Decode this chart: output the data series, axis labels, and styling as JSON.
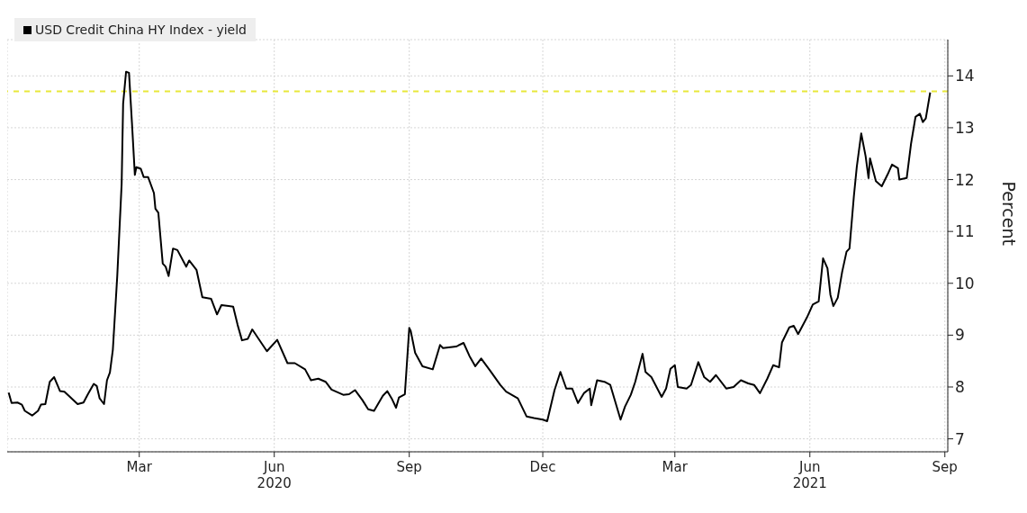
{
  "chart_data": {
    "type": "line",
    "ylabel": "Percent",
    "legend": "top left",
    "grid": true,
    "line_style": "solid",
    "marker": "none",
    "xlim": [
      "2019-12-02",
      "2021-09-03"
    ],
    "xticks": [
      {
        "value": "2020-03-01",
        "label": "Mar"
      },
      {
        "value": "2020-06-01",
        "label": "Jun\n2020"
      },
      {
        "value": "2020-09-01",
        "label": "Sep"
      },
      {
        "value": "2020-12-01",
        "label": "Dec"
      },
      {
        "value": "2021-03-01",
        "label": "Mar"
      },
      {
        "value": "2021-06-01",
        "label": "Jun\n2021"
      },
      {
        "value": "2021-09-01",
        "label": "Sep"
      }
    ],
    "ylim": [
      6.75,
      14.7
    ],
    "yticks": [
      7,
      8,
      9,
      10,
      11,
      12,
      13,
      14
    ],
    "ref_lines": [
      {
        "axis": "y",
        "value": 13.7,
        "color": "#e8e83a",
        "line_style": "dashed"
      }
    ],
    "series": [
      {
        "name": "USD Credit China HY Index - yield",
        "color": "#000000",
        "x": [
          "2019-12-03",
          "2019-12-05",
          "2019-12-09",
          "2019-12-12",
          "2019-12-14",
          "2019-12-19",
          "2019-12-23",
          "2019-12-25",
          "2019-12-28",
          "2019-12-31",
          "2020-01-03",
          "2020-01-07",
          "2020-01-10",
          "2020-01-19",
          "2020-01-23",
          "2020-01-26",
          "2020-01-30",
          "2020-02-01",
          "2020-02-03",
          "2020-02-06",
          "2020-02-08",
          "2020-02-10",
          "2020-02-12",
          "2020-02-15",
          "2020-02-18",
          "2020-02-19",
          "2020-02-21",
          "2020-02-23",
          "2020-02-25",
          "2020-02-27",
          "2020-02-28",
          "2020-03-02",
          "2020-03-04",
          "2020-03-07",
          "2020-03-11",
          "2020-03-12",
          "2020-03-14",
          "2020-03-17",
          "2020-03-19",
          "2020-03-21",
          "2020-03-24",
          "2020-03-27",
          "2020-04-02",
          "2020-04-04",
          "2020-04-09",
          "2020-04-13",
          "2020-04-19",
          "2020-04-23",
          "2020-04-26",
          "2020-05-04",
          "2020-05-07",
          "2020-05-10",
          "2020-05-14",
          "2020-05-17",
          "2020-05-27",
          "2020-06-03",
          "2020-06-10",
          "2020-06-15",
          "2020-06-22",
          "2020-06-26",
          "2020-07-01",
          "2020-07-06",
          "2020-07-10",
          "2020-07-18",
          "2020-07-22",
          "2020-07-26",
          "2020-07-31",
          "2020-08-04",
          "2020-08-08",
          "2020-08-14",
          "2020-08-17",
          "2020-08-20",
          "2020-08-23",
          "2020-08-25",
          "2020-08-29",
          "2020-09-01",
          "2020-09-02",
          "2020-09-05",
          "2020-09-10",
          "2020-09-17",
          "2020-09-22",
          "2020-09-24",
          "2020-10-03",
          "2020-10-08",
          "2020-10-12",
          "2020-10-16",
          "2020-10-20",
          "2020-10-26",
          "2020-11-02",
          "2020-11-06",
          "2020-11-14",
          "2020-11-20",
          "2020-11-25",
          "2020-12-01",
          "2020-12-04",
          "2020-12-09",
          "2020-12-13",
          "2020-12-17",
          "2020-12-21",
          "2020-12-25",
          "2020-12-29",
          "2021-01-02",
          "2021-01-03",
          "2021-01-07",
          "2021-01-12",
          "2021-01-16",
          "2021-01-23",
          "2021-01-26",
          "2021-01-30",
          "2021-02-02",
          "2021-02-07",
          "2021-02-09",
          "2021-02-13",
          "2021-02-20",
          "2021-02-23",
          "2021-02-26",
          "2021-03-01",
          "2021-03-03",
          "2021-03-09",
          "2021-03-12",
          "2021-03-17",
          "2021-03-21",
          "2021-03-25",
          "2021-03-29",
          "2021-04-05",
          "2021-04-10",
          "2021-04-15",
          "2021-04-20",
          "2021-04-24",
          "2021-04-28",
          "2021-05-03",
          "2021-05-07",
          "2021-05-11",
          "2021-05-13",
          "2021-05-18",
          "2021-05-21",
          "2021-05-24",
          "2021-05-30",
          "2021-06-03",
          "2021-06-07",
          "2021-06-10",
          "2021-06-13",
          "2021-06-15",
          "2021-06-17",
          "2021-06-20",
          "2021-06-23",
          "2021-06-26",
          "2021-06-28",
          "2021-07-01",
          "2021-07-03",
          "2021-07-06",
          "2021-07-09",
          "2021-07-11",
          "2021-07-12",
          "2021-07-16",
          "2021-07-20",
          "2021-07-24",
          "2021-07-27",
          "2021-07-31",
          "2021-08-01",
          "2021-08-06",
          "2021-08-09",
          "2021-08-12",
          "2021-08-15",
          "2021-08-17",
          "2021-08-19",
          "2021-08-22"
        ],
        "values": [
          7.89,
          7.69,
          7.7,
          7.66,
          7.54,
          7.45,
          7.54,
          7.66,
          7.67,
          8.1,
          8.19,
          7.92,
          7.91,
          7.67,
          7.7,
          7.86,
          8.06,
          8.02,
          7.78,
          7.67,
          8.13,
          8.28,
          8.72,
          10.14,
          11.92,
          13.46,
          14.08,
          14.06,
          13.1,
          12.09,
          12.24,
          12.21,
          12.05,
          12.05,
          11.74,
          11.44,
          11.36,
          10.38,
          10.32,
          10.14,
          10.67,
          10.64,
          10.32,
          10.44,
          10.26,
          9.73,
          9.7,
          9.4,
          9.58,
          9.55,
          9.2,
          8.9,
          8.93,
          9.11,
          8.69,
          8.91,
          8.46,
          8.46,
          8.34,
          8.13,
          8.16,
          8.1,
          7.95,
          7.85,
          7.86,
          7.94,
          7.75,
          7.57,
          7.54,
          7.83,
          7.92,
          7.78,
          7.6,
          7.8,
          7.86,
          9.14,
          9.08,
          8.66,
          8.4,
          8.34,
          8.81,
          8.75,
          8.78,
          8.85,
          8.6,
          8.4,
          8.55,
          8.32,
          8.04,
          7.91,
          7.78,
          7.43,
          7.4,
          7.37,
          7.34,
          7.94,
          8.29,
          7.97,
          7.97,
          7.69,
          7.88,
          7.97,
          7.65,
          8.13,
          8.1,
          8.04,
          7.37,
          7.62,
          7.85,
          8.1,
          8.64,
          8.29,
          8.19,
          7.81,
          7.97,
          8.35,
          8.42,
          8.0,
          7.97,
          8.04,
          8.48,
          8.19,
          8.1,
          8.23,
          7.97,
          8.0,
          8.13,
          8.07,
          8.04,
          7.88,
          8.16,
          8.42,
          8.38,
          8.86,
          9.15,
          9.18,
          9.02,
          9.34,
          9.59,
          9.65,
          10.48,
          10.29,
          9.78,
          9.56,
          9.72,
          10.22,
          10.61,
          10.67,
          11.68,
          12.25,
          12.89,
          12.45,
          12.03,
          12.41,
          11.97,
          11.87,
          12.1,
          12.29,
          12.22,
          12.0,
          12.03,
          12.7,
          13.21,
          13.27,
          13.11,
          13.18,
          13.68
        ]
      }
    ]
  }
}
